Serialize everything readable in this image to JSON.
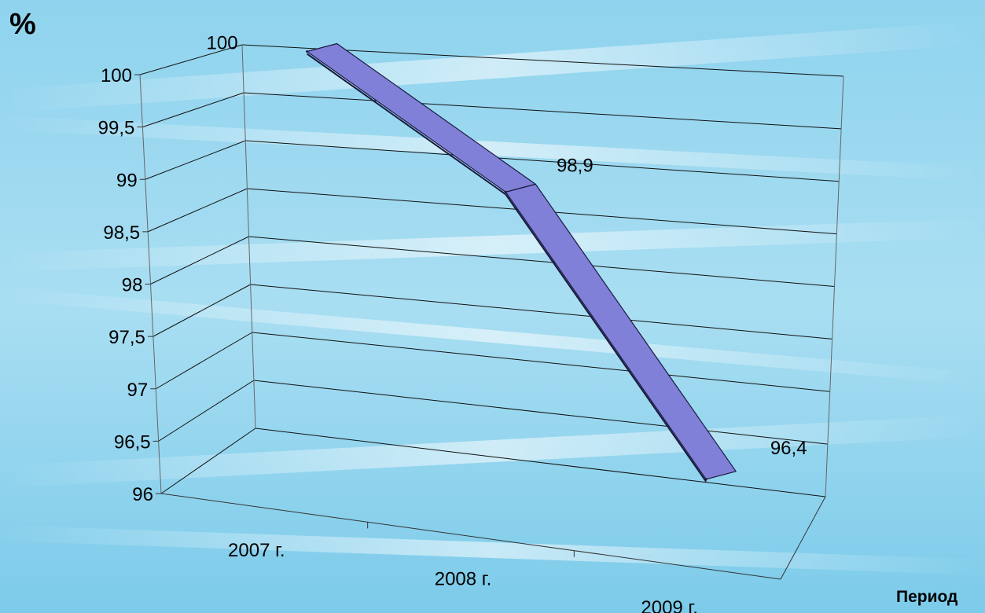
{
  "chart_data": {
    "type": "line",
    "style": "3d-ribbon",
    "title": "",
    "ylabel": "%",
    "xlabel": "Период",
    "categories": [
      "2007 г.",
      "2008 г.",
      "2009 г."
    ],
    "series": [
      {
        "values": [
          100,
          98.9,
          96.4
        ],
        "data_labels": [
          "100",
          "98,9",
          "96,4"
        ]
      }
    ],
    "ylim": [
      96,
      100
    ],
    "yticks": [
      96,
      96.5,
      97,
      97.5,
      98,
      98.5,
      99,
      99.5,
      100
    ],
    "ytick_labels": [
      "96",
      "96,5",
      "97",
      "97,5",
      "98",
      "98,5",
      "99",
      "99,5",
      "100"
    ],
    "grid": true,
    "legend": "none",
    "colors": {
      "series": "#8080d8",
      "series_edge": "#1a1a40",
      "grid": "#111111",
      "background_light": "#d9eef8",
      "background_dark": "#6ec5e6"
    }
  }
}
